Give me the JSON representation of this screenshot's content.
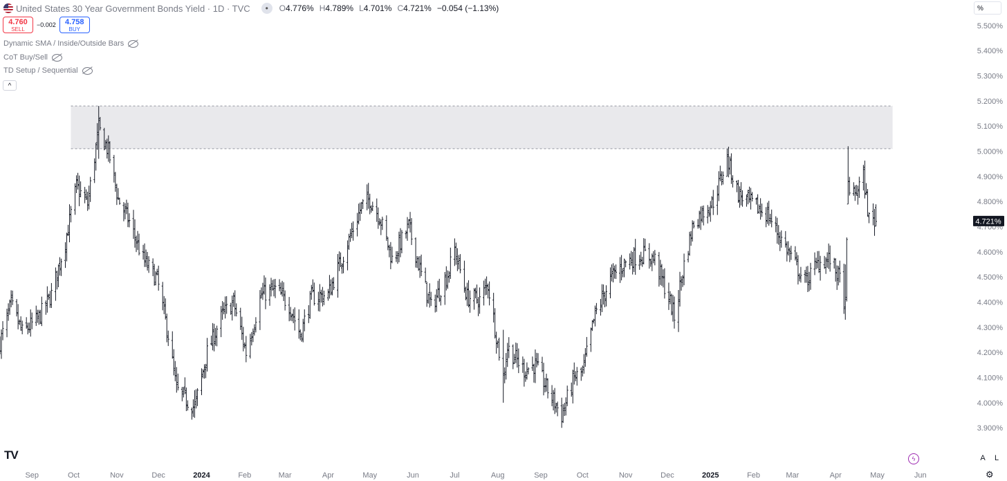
{
  "header": {
    "symbol_title": "United States 30 Year Government Bonds Yield · 1D · TVC",
    "ohlc": {
      "o_label": "O",
      "o": "4.776%",
      "h_label": "H",
      "h": "4.789%",
      "l_label": "L",
      "l": "4.701%",
      "c_label": "C",
      "c": "4.721%",
      "change": "−0.054 (−1.13%)"
    }
  },
  "trade": {
    "sell_price": "4.760",
    "sell_label": "SELL",
    "spread": "−0.002",
    "buy_price": "4.758",
    "buy_label": "BUY"
  },
  "indicators": [
    {
      "name": "Dynamic SMA / Inside/Outside Bars"
    },
    {
      "name": "CoT Buy/Sell"
    },
    {
      "name": "TD Setup / Sequential"
    }
  ],
  "unit_selector": "%",
  "controls": {
    "auto": "A",
    "log": "L"
  },
  "colors": {
    "bar": "#131722",
    "zone": "#e9e9ec",
    "price_tag": "#131722",
    "axis_text": "#787b86"
  },
  "icons": [
    "flag-icon",
    "eye-off-icon",
    "chevron-up-icon",
    "tradingview-logo-icon",
    "lightning-icon",
    "gear-icon"
  ],
  "chart_data": {
    "type": "bar",
    "subtype": "ohlc",
    "y_unit": "%",
    "ylim": [
      3.84,
      5.53
    ],
    "y_ticks": [
      "5.500%",
      "5.400%",
      "5.300%",
      "5.200%",
      "5.100%",
      "5.000%",
      "4.900%",
      "4.800%",
      "4.700%",
      "4.600%",
      "4.500%",
      "4.400%",
      "4.300%",
      "4.200%",
      "4.100%",
      "4.000%",
      "3.900%"
    ],
    "x_ticks": [
      "Sep",
      "Oct",
      "Nov",
      "Dec",
      "2024",
      "Feb",
      "Mar",
      "Apr",
      "May",
      "Jun",
      "Jul",
      "Aug",
      "Sep",
      "Oct",
      "Nov",
      "Dec",
      "2025",
      "Feb",
      "Mar",
      "Apr",
      "May",
      "Jun"
    ],
    "x_ticks_bold": [
      "2024",
      "2025"
    ],
    "x_range": [
      "2023-08-09",
      "2025-06-20"
    ],
    "last_price": "4.721%",
    "resistance_zone": {
      "from": 5.01,
      "to": 5.18,
      "start": "2023-09-29",
      "end": "2025-05-12"
    },
    "anchors": [
      [
        "2023-08-09",
        4.24
      ],
      [
        "2023-08-17",
        4.39
      ],
      [
        "2023-08-25",
        4.28
      ],
      [
        "2023-09-05",
        4.33
      ],
      [
        "2023-09-15",
        4.43
      ],
      [
        "2023-09-25",
        4.64
      ],
      [
        "2023-10-03",
        4.86
      ],
      [
        "2023-10-11",
        4.79
      ],
      [
        "2023-10-19",
        5.09
      ],
      [
        "2023-10-26",
        5.0
      ],
      [
        "2023-11-02",
        4.81
      ],
      [
        "2023-11-10",
        4.72
      ],
      [
        "2023-11-20",
        4.57
      ],
      [
        "2023-11-30",
        4.49
      ],
      [
        "2023-12-08",
        4.27
      ],
      [
        "2023-12-14",
        4.05
      ],
      [
        "2023-12-27",
        3.98
      ],
      [
        "2024-01-05",
        4.2
      ],
      [
        "2024-01-16",
        4.35
      ],
      [
        "2024-01-24",
        4.4
      ],
      [
        "2024-02-02",
        4.2
      ],
      [
        "2024-02-13",
        4.43
      ],
      [
        "2024-02-23",
        4.45
      ],
      [
        "2024-03-04",
        4.39
      ],
      [
        "2024-03-12",
        4.27
      ],
      [
        "2024-03-20",
        4.42
      ],
      [
        "2024-04-01",
        4.43
      ],
      [
        "2024-04-10",
        4.56
      ],
      [
        "2024-04-25",
        4.78
      ],
      [
        "2024-05-01",
        4.81
      ],
      [
        "2024-05-08",
        4.74
      ],
      [
        "2024-05-17",
        4.57
      ],
      [
        "2024-05-29",
        4.7
      ],
      [
        "2024-06-07",
        4.51
      ],
      [
        "2024-06-14",
        4.38
      ],
      [
        "2024-06-26",
        4.51
      ],
      [
        "2024-07-01",
        4.61
      ],
      [
        "2024-07-10",
        4.42
      ],
      [
        "2024-07-19",
        4.41
      ],
      [
        "2024-07-25",
        4.47
      ],
      [
        "2024-08-05",
        4.1
      ],
      [
        "2024-08-08",
        4.22
      ],
      [
        "2024-08-20",
        4.13
      ],
      [
        "2024-08-28",
        4.15
      ],
      [
        "2024-09-06",
        4.05
      ],
      [
        "2024-09-16",
        3.95
      ],
      [
        "2024-09-25",
        4.1
      ],
      [
        "2024-10-01",
        4.12
      ],
      [
        "2024-10-10",
        4.35
      ],
      [
        "2024-10-22",
        4.5
      ],
      [
        "2024-11-01",
        4.56
      ],
      [
        "2024-11-08",
        4.58
      ],
      [
        "2024-11-15",
        4.59
      ],
      [
        "2024-11-22",
        4.57
      ],
      [
        "2024-12-03",
        4.4
      ],
      [
        "2024-12-06",
        4.34
      ],
      [
        "2024-12-13",
        4.55
      ],
      [
        "2024-12-20",
        4.72
      ],
      [
        "2025-01-03",
        4.8
      ],
      [
        "2025-01-13",
        4.97
      ],
      [
        "2025-01-21",
        4.83
      ],
      [
        "2025-01-31",
        4.79
      ],
      [
        "2025-02-11",
        4.75
      ],
      [
        "2025-02-21",
        4.65
      ],
      [
        "2025-03-03",
        4.55
      ],
      [
        "2025-03-10",
        4.48
      ],
      [
        "2025-03-20",
        4.56
      ],
      [
        "2025-03-28",
        4.57
      ],
      [
        "2025-04-04",
        4.49
      ],
      [
        "2025-04-08",
        4.38
      ],
      [
        "2025-04-10",
        4.87
      ],
      [
        "2025-04-14",
        4.82
      ],
      [
        "2025-04-21",
        4.9
      ],
      [
        "2025-04-25",
        4.73
      ],
      [
        "2025-04-30",
        4.72
      ]
    ],
    "key_bars": [
      {
        "date": "2023-10-19",
        "high": 5.18,
        "low": 4.97
      },
      {
        "date": "2023-12-27",
        "high": 4.05,
        "low": 3.94
      },
      {
        "date": "2024-08-05",
        "high": 4.29,
        "low": 4.0
      },
      {
        "date": "2024-09-16",
        "high": 4.02,
        "low": 3.9
      },
      {
        "date": "2025-01-13",
        "high": 5.01,
        "low": 4.9
      },
      {
        "date": "2025-04-08",
        "high": 4.55,
        "low": 4.33
      },
      {
        "date": "2025-04-10",
        "high": 5.02,
        "low": 4.79
      },
      {
        "date": "2025-04-30",
        "high": 4.789,
        "low": 4.701,
        "open": 4.776,
        "close": 4.721
      }
    ]
  }
}
